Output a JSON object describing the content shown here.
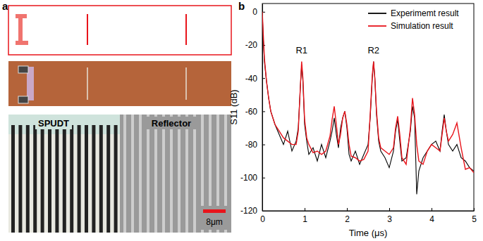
{
  "panel_a": {
    "label": "a",
    "photo_labels": [
      "SPUDT",
      "Reflector"
    ],
    "scale_bar": "8μm"
  },
  "panel_b": {
    "label": "b"
  },
  "chart_data": {
    "type": "line",
    "x_label": "Time (μs)",
    "y_label": "S11 (dB)",
    "x": [
      0,
      0.02,
      0.05,
      0.1,
      0.15,
      0.2,
      0.3,
      0.4,
      0.5,
      0.6,
      0.7,
      0.8,
      0.85,
      0.9,
      0.93,
      0.96,
      1.0,
      1.05,
      1.1,
      1.2,
      1.3,
      1.4,
      1.5,
      1.6,
      1.65,
      1.7,
      1.75,
      1.8,
      1.85,
      1.9,
      1.95,
      2.0,
      2.05,
      2.1,
      2.2,
      2.3,
      2.4,
      2.5,
      2.55,
      2.6,
      2.63,
      2.66,
      2.7,
      2.75,
      2.8,
      2.9,
      3.0,
      3.1,
      3.15,
      3.2,
      3.25,
      3.3,
      3.4,
      3.5,
      3.55,
      3.6,
      3.65,
      3.7,
      3.8,
      3.9,
      4.0,
      4.1,
      4.2,
      4.25,
      4.3,
      4.35,
      4.4,
      4.5,
      4.6,
      4.7,
      4.8,
      4.9,
      5.0
    ],
    "series": [
      {
        "name": "Experimemt result",
        "color": "#000000",
        "values": [
          0,
          -15,
          -30,
          -42,
          -52,
          -60,
          -68,
          -74,
          -80,
          -72,
          -84,
          -78,
          -70,
          -45,
          -32,
          -42,
          -68,
          -78,
          -86,
          -82,
          -90,
          -80,
          -88,
          -78,
          -72,
          -64,
          -74,
          -82,
          -70,
          -64,
          -60,
          -70,
          -86,
          -90,
          -84,
          -92,
          -86,
          -80,
          -64,
          -40,
          -30,
          -40,
          -62,
          -78,
          -84,
          -88,
          -94,
          -84,
          -72,
          -65,
          -78,
          -90,
          -88,
          -72,
          -57,
          -64,
          -110,
          -96,
          -88,
          -84,
          -80,
          -78,
          -84,
          -72,
          -62,
          -72,
          -80,
          -84,
          -80,
          -88,
          -90,
          -94,
          -96
        ]
      },
      {
        "name": "Simulation result",
        "color": "#e8141b",
        "values": [
          0,
          -12,
          -28,
          -42,
          -52,
          -60,
          -68,
          -72,
          -76,
          -78,
          -80,
          -80,
          -72,
          -45,
          -30,
          -40,
          -65,
          -76,
          -80,
          -85,
          -84,
          -86,
          -84,
          -75,
          -65,
          -57,
          -68,
          -80,
          -74,
          -64,
          -60,
          -68,
          -80,
          -87,
          -88,
          -90,
          -89,
          -84,
          -62,
          -38,
          -30,
          -40,
          -60,
          -76,
          -82,
          -84,
          -86,
          -82,
          -70,
          -63,
          -74,
          -88,
          -92,
          -70,
          -52,
          -62,
          -80,
          -90,
          -92,
          -84,
          -80,
          -82,
          -84,
          -74,
          -64,
          -72,
          -78,
          -74,
          -67,
          -82,
          -95,
          -94,
          -97
        ]
      }
    ],
    "xlim": [
      0,
      5
    ],
    "xticks": [
      0,
      1,
      2,
      3,
      4,
      5
    ],
    "ylim": [
      -120,
      5
    ],
    "yticks": [
      -120,
      -100,
      -80,
      -60,
      -40,
      -20,
      0
    ],
    "annotations": [
      {
        "text": "R1",
        "x": 0.93,
        "y": -25
      },
      {
        "text": "R2",
        "x": 2.63,
        "y": -25
      }
    ],
    "legend": "upper right",
    "grid": false
  }
}
